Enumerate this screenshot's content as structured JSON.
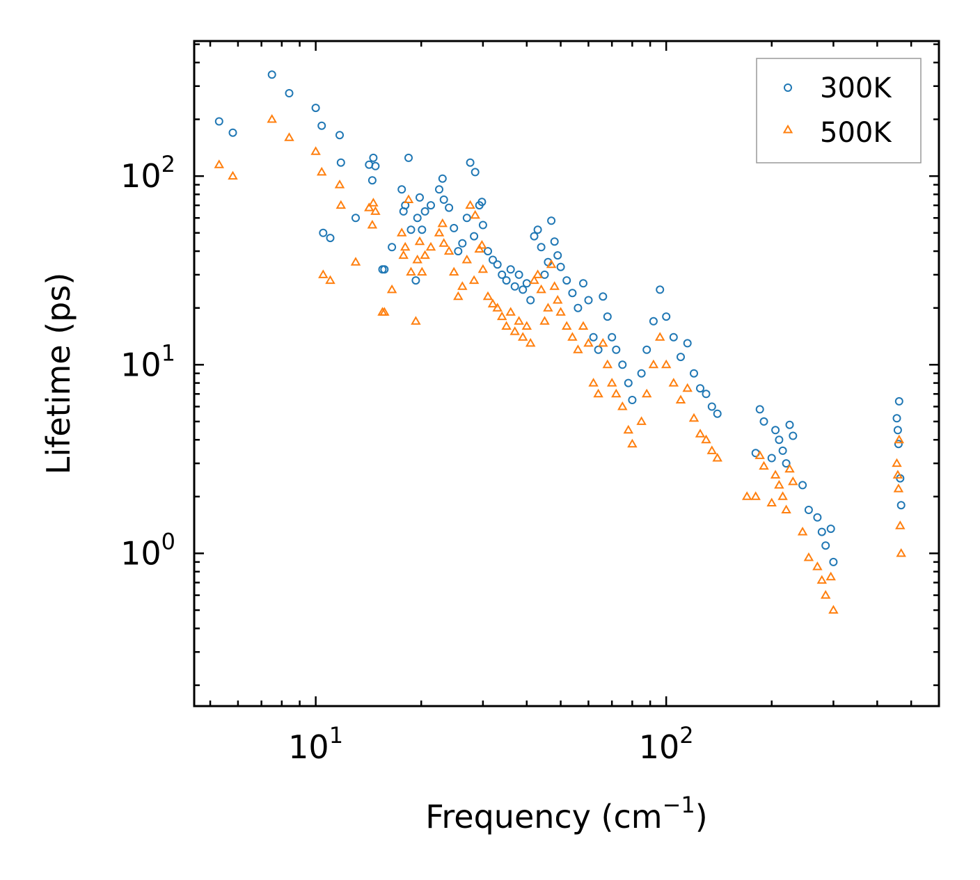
{
  "chart_data": {
    "type": "scatter",
    "title": "",
    "xlabel": "Frequency (cm",
    "xlabel_exp": "−1",
    "xlabel_suffix": ")",
    "ylabel": "Lifetime (ps)",
    "xscale": "log",
    "yscale": "log",
    "xlim": [
      4.5,
      600
    ],
    "ylim": [
      0.155,
      520
    ],
    "x_ticks": [
      {
        "value": 10,
        "base": "10",
        "exp": "1"
      },
      {
        "value": 100,
        "base": "10",
        "exp": "2"
      }
    ],
    "y_ticks": [
      {
        "value": 1,
        "base": "10",
        "exp": "0"
      },
      {
        "value": 10,
        "base": "10",
        "exp": "1"
      },
      {
        "value": 100,
        "base": "10",
        "exp": "2"
      }
    ],
    "legend_position": "top-right",
    "series": [
      {
        "name": "300K",
        "color": "#1f77b4",
        "marker": "circle",
        "points": [
          [
            5.3,
            195
          ],
          [
            5.8,
            170
          ],
          [
            7.5,
            345
          ],
          [
            8.4,
            275
          ],
          [
            10.0,
            230
          ],
          [
            10.4,
            185
          ],
          [
            11.7,
            165
          ],
          [
            11.8,
            118
          ],
          [
            10.5,
            50
          ],
          [
            11.0,
            47
          ],
          [
            13.0,
            60
          ],
          [
            14.2,
            115
          ],
          [
            14.5,
            95
          ],
          [
            14.6,
            125
          ],
          [
            14.8,
            113
          ],
          [
            15.5,
            32
          ],
          [
            15.7,
            32
          ],
          [
            16.5,
            42
          ],
          [
            17.6,
            85
          ],
          [
            17.8,
            65
          ],
          [
            18.0,
            70
          ],
          [
            18.4,
            125
          ],
          [
            18.7,
            52
          ],
          [
            19.3,
            28
          ],
          [
            19.5,
            60
          ],
          [
            19.8,
            77
          ],
          [
            20.1,
            52
          ],
          [
            20.5,
            65
          ],
          [
            21.3,
            70
          ],
          [
            22.5,
            85
          ],
          [
            23.0,
            97
          ],
          [
            23.2,
            75
          ],
          [
            24.0,
            68
          ],
          [
            24.8,
            53
          ],
          [
            25.5,
            40
          ],
          [
            26.2,
            44
          ],
          [
            27.0,
            60
          ],
          [
            27.6,
            118
          ],
          [
            28.3,
            48
          ],
          [
            28.5,
            105
          ],
          [
            29.3,
            70
          ],
          [
            29.8,
            73
          ],
          [
            30.0,
            55
          ],
          [
            31.0,
            40
          ],
          [
            32.0,
            36
          ],
          [
            33.0,
            34
          ],
          [
            34.0,
            30
          ],
          [
            35.0,
            28
          ],
          [
            36.0,
            32
          ],
          [
            37.0,
            26
          ],
          [
            38.0,
            30
          ],
          [
            39.0,
            25
          ],
          [
            40.0,
            27
          ],
          [
            41.0,
            22
          ],
          [
            42.0,
            48
          ],
          [
            43.0,
            52
          ],
          [
            44.0,
            42
          ],
          [
            45.0,
            30
          ],
          [
            46.0,
            35
          ],
          [
            47.0,
            58
          ],
          [
            48.0,
            45
          ],
          [
            49.0,
            38
          ],
          [
            50.0,
            33
          ],
          [
            52.0,
            28
          ],
          [
            54.0,
            24
          ],
          [
            56.0,
            20
          ],
          [
            58.0,
            27
          ],
          [
            60.0,
            22
          ],
          [
            62.0,
            14
          ],
          [
            64.0,
            12
          ],
          [
            66.0,
            23
          ],
          [
            68.0,
            18
          ],
          [
            70.0,
            14
          ],
          [
            72.0,
            12
          ],
          [
            75.0,
            10
          ],
          [
            78.0,
            8
          ],
          [
            80.0,
            6.5
          ],
          [
            85.0,
            9
          ],
          [
            88.0,
            12
          ],
          [
            92.0,
            17
          ],
          [
            96.0,
            25
          ],
          [
            100.0,
            18
          ],
          [
            105.0,
            14
          ],
          [
            110.0,
            11
          ],
          [
            115.0,
            13
          ],
          [
            120.0,
            9
          ],
          [
            125.0,
            7.5
          ],
          [
            130.0,
            7.0
          ],
          [
            135.0,
            6.0
          ],
          [
            140.0,
            5.5
          ],
          [
            180.0,
            3.4
          ],
          [
            185.0,
            5.8
          ],
          [
            190.0,
            5.0
          ],
          [
            200.0,
            3.2
          ],
          [
            205.0,
            4.5
          ],
          [
            210.0,
            4.0
          ],
          [
            215.0,
            3.5
          ],
          [
            220.0,
            3.0
          ],
          [
            225.0,
            4.8
          ],
          [
            230.0,
            4.2
          ],
          [
            245.0,
            2.3
          ],
          [
            255.0,
            1.7
          ],
          [
            270.0,
            1.55
          ],
          [
            278.0,
            1.3
          ],
          [
            285.0,
            1.1
          ],
          [
            295.0,
            1.35
          ],
          [
            300.0,
            0.9
          ],
          [
            455.0,
            5.2
          ],
          [
            458.0,
            4.5
          ],
          [
            460.0,
            3.8
          ],
          [
            462.0,
            6.4
          ],
          [
            465.0,
            2.5
          ],
          [
            468.0,
            1.8
          ]
        ]
      },
      {
        "name": "500K",
        "color": "#ff7f0e",
        "marker": "triangle",
        "points": [
          [
            5.3,
            115
          ],
          [
            5.8,
            100
          ],
          [
            7.5,
            200
          ],
          [
            8.4,
            160
          ],
          [
            10.0,
            135
          ],
          [
            10.4,
            105
          ],
          [
            11.7,
            90
          ],
          [
            11.8,
            70
          ],
          [
            10.5,
            30
          ],
          [
            11.0,
            28
          ],
          [
            13.0,
            35
          ],
          [
            14.2,
            68
          ],
          [
            14.5,
            55
          ],
          [
            14.6,
            72
          ],
          [
            14.8,
            65
          ],
          [
            15.5,
            19
          ],
          [
            15.7,
            19
          ],
          [
            16.5,
            25
          ],
          [
            17.6,
            50
          ],
          [
            17.8,
            38
          ],
          [
            18.0,
            42
          ],
          [
            18.4,
            75
          ],
          [
            18.7,
            31
          ],
          [
            19.3,
            17
          ],
          [
            19.5,
            36
          ],
          [
            19.8,
            45
          ],
          [
            20.1,
            31
          ],
          [
            20.5,
            38
          ],
          [
            21.3,
            42
          ],
          [
            22.5,
            50
          ],
          [
            23.0,
            56
          ],
          [
            23.2,
            44
          ],
          [
            24.0,
            40
          ],
          [
            24.8,
            31
          ],
          [
            25.5,
            23
          ],
          [
            26.2,
            26
          ],
          [
            27.0,
            36
          ],
          [
            27.6,
            70
          ],
          [
            28.3,
            28
          ],
          [
            28.5,
            62
          ],
          [
            29.3,
            41
          ],
          [
            29.8,
            43
          ],
          [
            30.0,
            32
          ],
          [
            31.0,
            23
          ],
          [
            32.0,
            21
          ],
          [
            33.0,
            20
          ],
          [
            34.0,
            18
          ],
          [
            35.0,
            16
          ],
          [
            36.0,
            19
          ],
          [
            37.0,
            15
          ],
          [
            38.0,
            17
          ],
          [
            39.0,
            14
          ],
          [
            40.0,
            16
          ],
          [
            41.0,
            13
          ],
          [
            42.0,
            28
          ],
          [
            43.0,
            30
          ],
          [
            44.0,
            25
          ],
          [
            45.0,
            17
          ],
          [
            46.0,
            20
          ],
          [
            47.0,
            34
          ],
          [
            48.0,
            26
          ],
          [
            49.0,
            22
          ],
          [
            50.0,
            19
          ],
          [
            52.0,
            16
          ],
          [
            54.0,
            14
          ],
          [
            56.0,
            12
          ],
          [
            58.0,
            16
          ],
          [
            60.0,
            13
          ],
          [
            62.0,
            8
          ],
          [
            64.0,
            7
          ],
          [
            66.0,
            13
          ],
          [
            68.0,
            10
          ],
          [
            70.0,
            8
          ],
          [
            72.0,
            7
          ],
          [
            75.0,
            6
          ],
          [
            78.0,
            4.5
          ],
          [
            80.0,
            3.8
          ],
          [
            85.0,
            5
          ],
          [
            88.0,
            7
          ],
          [
            92.0,
            10
          ],
          [
            96.0,
            14
          ],
          [
            100.0,
            10
          ],
          [
            105.0,
            8
          ],
          [
            110.0,
            6.5
          ],
          [
            115.0,
            7.5
          ],
          [
            120.0,
            5.2
          ],
          [
            125.0,
            4.3
          ],
          [
            130.0,
            4.0
          ],
          [
            135.0,
            3.5
          ],
          [
            140.0,
            3.2
          ],
          [
            170.0,
            2.0
          ],
          [
            180.0,
            2.0
          ],
          [
            185.0,
            3.3
          ],
          [
            190.0,
            2.9
          ],
          [
            200.0,
            1.85
          ],
          [
            205.0,
            2.6
          ],
          [
            210.0,
            2.3
          ],
          [
            215.0,
            2.0
          ],
          [
            220.0,
            1.7
          ],
          [
            225.0,
            2.8
          ],
          [
            230.0,
            2.4
          ],
          [
            245.0,
            1.3
          ],
          [
            255.0,
            0.95
          ],
          [
            270.0,
            0.85
          ],
          [
            278.0,
            0.72
          ],
          [
            285.0,
            0.6
          ],
          [
            295.0,
            0.75
          ],
          [
            300.0,
            0.5
          ],
          [
            455.0,
            3.0
          ],
          [
            458.0,
            2.6
          ],
          [
            460.0,
            2.2
          ],
          [
            462.0,
            4.0
          ],
          [
            465.0,
            1.4
          ],
          [
            468.0,
            1.0
          ]
        ]
      }
    ]
  }
}
